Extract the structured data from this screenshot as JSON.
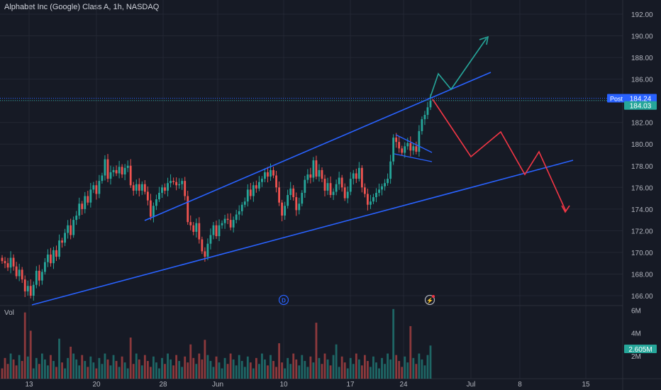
{
  "header": {
    "title": "Alphabet Inc (Google) Class A, 1h, NASDAQ"
  },
  "chart_data": {
    "type": "candlestick",
    "price_ticks": [
      "192.00",
      "190.00",
      "188.00",
      "186.00",
      "184.00",
      "182.00",
      "180.00",
      "178.00",
      "176.00",
      "174.00",
      "172.00",
      "170.00",
      "168.00",
      "166.00"
    ],
    "price_tick_values": [
      192,
      190,
      188,
      186,
      184,
      182,
      180,
      178,
      176,
      174,
      172,
      170,
      168,
      166
    ],
    "ylim": [
      165.3,
      193.2
    ],
    "date_ticks": [
      "13",
      "20",
      "28",
      "Jun",
      "10",
      "17",
      "24",
      "Jul",
      "8",
      "15"
    ],
    "volume_label": "Vol",
    "volume_ticks": [
      "6M",
      "4M",
      "2M"
    ],
    "volume_tick_values": [
      6,
      4,
      2
    ],
    "post_label": "Post",
    "post_price": 184.24,
    "post_price_text": "184.24",
    "last_price": 184.03,
    "last_price_text": "184.03",
    "volume_last_text": "2.605M",
    "volume_last": 2.605,
    "event_markers": [
      "D",
      "⚡"
    ],
    "closes": [
      169.2,
      169.0,
      168.6,
      169.5,
      168.7,
      167.8,
      168.4,
      167.5,
      166.4,
      166.9,
      166.0,
      167.0,
      168.3,
      167.4,
      168.2,
      169.1,
      169.8,
      169.0,
      170.2,
      169.6,
      171.1,
      170.9,
      171.8,
      172.5,
      171.6,
      173.0,
      173.4,
      174.5,
      174.0,
      175.2,
      174.6,
      175.8,
      176.2,
      175.4,
      176.6,
      177.1,
      178.6,
      176.8,
      177.4,
      177.6,
      177.3,
      177.9,
      177.2,
      177.8,
      178.0,
      176.2,
      175.7,
      176.3,
      175.7,
      176.3,
      175.6,
      174.8,
      173.3,
      174.3,
      174.9,
      175.5,
      176.0,
      175.7,
      176.4,
      176.6,
      176.5,
      176.2,
      176.3,
      176.6,
      175.2,
      172.8,
      172.5,
      171.9,
      172.7,
      171.2,
      170.1,
      169.6,
      170.8,
      171.6,
      172.5,
      171.5,
      172.5,
      172.7,
      173.1,
      173.0,
      172.3,
      173.0,
      173.5,
      173.8,
      174.4,
      174.7,
      175.8,
      175.2,
      176.2,
      175.9,
      176.5,
      176.8,
      177.4,
      177.0,
      177.6,
      177.1,
      176.0,
      174.6,
      173.4,
      174.3,
      175.3,
      175.9,
      175.1,
      173.9,
      174.5,
      175.5,
      176.7,
      177.2,
      176.9,
      178.5,
      177.0,
      177.6,
      176.8,
      175.7,
      176.4,
      175.3,
      175.6,
      176.3,
      176.9,
      176.0,
      175.0,
      175.6,
      176.8,
      177.3,
      176.8,
      177.8,
      176.0,
      175.4,
      174.4,
      174.7,
      175.1,
      175.5,
      175.8,
      176.1,
      176.4,
      176.8,
      178.4,
      180.6,
      180.2,
      179.6,
      179.2,
      179.8,
      180.1,
      179.4,
      179.8,
      179.3,
      181.2,
      182.3,
      182.7,
      183.4,
      184.0
    ]
  }
}
